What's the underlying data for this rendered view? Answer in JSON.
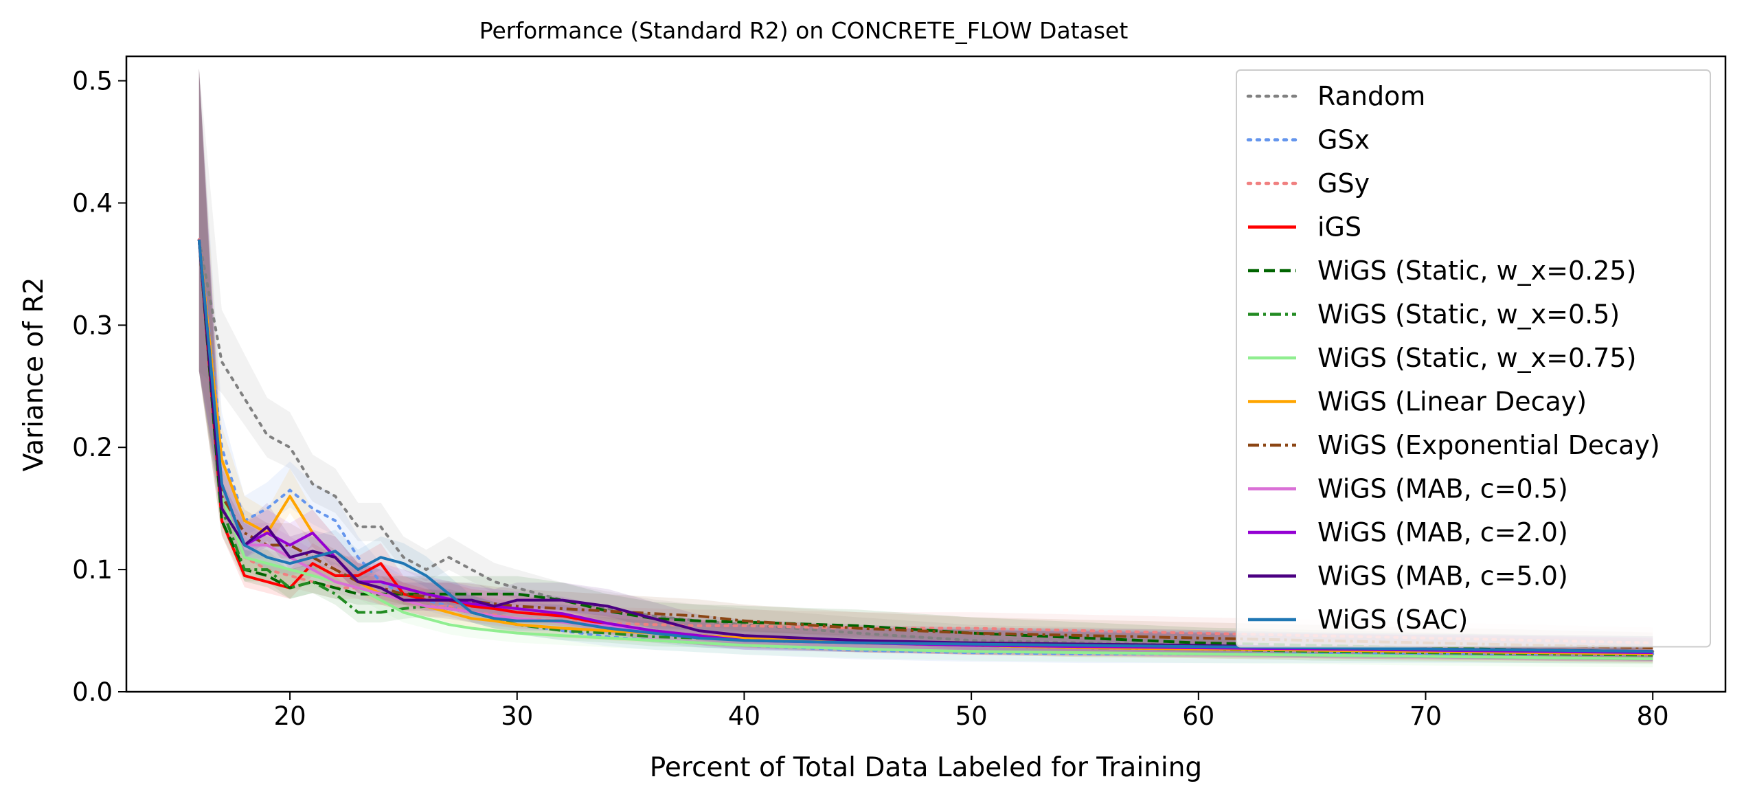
{
  "chart_data": {
    "type": "line",
    "title": "Performance (Standard R2) on CONCRETE_FLOW Dataset",
    "xlabel": "Percent of Total Data Labeled for Training",
    "ylabel": "Variance of R2",
    "xlim": [
      12.8,
      83.2
    ],
    "ylim": [
      0.0,
      0.52
    ],
    "xticks": [
      20,
      30,
      40,
      50,
      60,
      70,
      80
    ],
    "yticks": [
      0.0,
      0.1,
      0.2,
      0.3,
      0.4,
      0.5
    ],
    "xtick_labels": [
      "20",
      "30",
      "40",
      "50",
      "60",
      "70",
      "80"
    ],
    "ytick_labels": [
      "0.0",
      "0.1",
      "0.2",
      "0.3",
      "0.4",
      "0.5"
    ],
    "grid": false,
    "legend_position": "top-right",
    "x": [
      16,
      17,
      18,
      19,
      20,
      21,
      22,
      23,
      24,
      25,
      26,
      27,
      28,
      29,
      30,
      32,
      34,
      36,
      38,
      40,
      45,
      50,
      55,
      60,
      65,
      70,
      75,
      80
    ],
    "series": [
      {
        "name": "Random",
        "color": "#808080",
        "dash": "dotted",
        "values": [
          0.37,
          0.27,
          0.24,
          0.21,
          0.2,
          0.17,
          0.16,
          0.135,
          0.135,
          0.11,
          0.1,
          0.11,
          0.1,
          0.09,
          0.085,
          0.075,
          0.068,
          0.062,
          0.058,
          0.055,
          0.048,
          0.042,
          0.04,
          0.038,
          0.036,
          0.035,
          0.034,
          0.033
        ]
      },
      {
        "name": "GSx",
        "color": "#6495ED",
        "dash": "dotted",
        "values": [
          0.37,
          0.2,
          0.14,
          0.15,
          0.165,
          0.15,
          0.14,
          0.11,
          0.09,
          0.08,
          0.075,
          0.07,
          0.065,
          0.06,
          0.055,
          0.05,
          0.045,
          0.042,
          0.04,
          0.038,
          0.034,
          0.032,
          0.031,
          0.031,
          0.031,
          0.031,
          0.031,
          0.031
        ]
      },
      {
        "name": "GSy",
        "color": "#F08080",
        "dash": "dotted",
        "values": [
          0.37,
          0.16,
          0.11,
          0.1,
          0.095,
          0.09,
          0.085,
          0.085,
          0.08,
          0.075,
          0.07,
          0.07,
          0.065,
          0.063,
          0.06,
          0.058,
          0.056,
          0.055,
          0.054,
          0.054,
          0.052,
          0.052,
          0.05,
          0.048,
          0.046,
          0.044,
          0.042,
          0.04
        ]
      },
      {
        "name": "iGS",
        "color": "#FF0000",
        "dash": "solid",
        "values": [
          0.37,
          0.14,
          0.095,
          0.09,
          0.085,
          0.105,
          0.095,
          0.095,
          0.105,
          0.08,
          0.075,
          0.075,
          0.07,
          0.068,
          0.065,
          0.062,
          0.055,
          0.05,
          0.046,
          0.044,
          0.04,
          0.038,
          0.037,
          0.036,
          0.035,
          0.034,
          0.033,
          0.032
        ]
      },
      {
        "name": "WiGS (Static, w_x=0.25)",
        "color": "#006400",
        "dash": "dashed",
        "values": [
          0.37,
          0.14,
          0.1,
          0.095,
          0.085,
          0.09,
          0.085,
          0.08,
          0.08,
          0.08,
          0.08,
          0.08,
          0.08,
          0.08,
          0.08,
          0.075,
          0.066,
          0.06,
          0.058,
          0.057,
          0.054,
          0.048,
          0.044,
          0.04,
          0.038,
          0.036,
          0.034,
          0.033
        ]
      },
      {
        "name": "WiGS (Static, w_x=0.5)",
        "color": "#228B22",
        "dash": "dashdot",
        "values": [
          0.37,
          0.15,
          0.1,
          0.1,
          0.085,
          0.09,
          0.08,
          0.065,
          0.065,
          0.068,
          0.07,
          0.068,
          0.065,
          0.06,
          0.055,
          0.05,
          0.048,
          0.045,
          0.044,
          0.043,
          0.04,
          0.038,
          0.036,
          0.035,
          0.033,
          0.032,
          0.031,
          0.03
        ]
      },
      {
        "name": "WiGS (Static, w_x=0.75)",
        "color": "#90EE90",
        "dash": "solid",
        "values": [
          0.37,
          0.16,
          0.11,
          0.105,
          0.1,
          0.095,
          0.09,
          0.085,
          0.075,
          0.065,
          0.06,
          0.055,
          0.052,
          0.05,
          0.048,
          0.046,
          0.044,
          0.042,
          0.04,
          0.038,
          0.035,
          0.033,
          0.032,
          0.031,
          0.03,
          0.029,
          0.028,
          0.027
        ]
      },
      {
        "name": "WiGS (Linear Decay)",
        "color": "#FFA500",
        "dash": "solid",
        "values": [
          0.37,
          0.19,
          0.14,
          0.13,
          0.16,
          0.13,
          0.11,
          0.09,
          0.08,
          0.075,
          0.07,
          0.065,
          0.06,
          0.058,
          0.055,
          0.052,
          0.05,
          0.048,
          0.046,
          0.044,
          0.04,
          0.038,
          0.036,
          0.035,
          0.034,
          0.033,
          0.032,
          0.031
        ]
      },
      {
        "name": "WiGS (Exponential Decay)",
        "color": "#8B4513",
        "dash": "dashdot",
        "values": [
          0.37,
          0.16,
          0.13,
          0.12,
          0.12,
          0.11,
          0.1,
          0.09,
          0.085,
          0.08,
          0.078,
          0.076,
          0.074,
          0.072,
          0.07,
          0.068,
          0.066,
          0.064,
          0.062,
          0.058,
          0.052,
          0.048,
          0.046,
          0.044,
          0.042,
          0.04,
          0.038,
          0.036
        ]
      },
      {
        "name": "WiGS (MAB, c=0.5)",
        "color": "#DA70D6",
        "dash": "solid",
        "values": [
          0.37,
          0.17,
          0.12,
          0.12,
          0.11,
          0.1,
          0.09,
          0.085,
          0.08,
          0.075,
          0.07,
          0.068,
          0.065,
          0.062,
          0.06,
          0.057,
          0.054,
          0.05,
          0.046,
          0.042,
          0.04,
          0.038,
          0.037,
          0.036,
          0.035,
          0.034,
          0.033,
          0.032
        ]
      },
      {
        "name": "WiGS (MAB, c=2.0)",
        "color": "#9400D3",
        "dash": "solid",
        "values": [
          0.37,
          0.17,
          0.12,
          0.13,
          0.12,
          0.13,
          0.11,
          0.09,
          0.09,
          0.085,
          0.08,
          0.076,
          0.072,
          0.07,
          0.068,
          0.064,
          0.056,
          0.05,
          0.046,
          0.042,
          0.04,
          0.038,
          0.037,
          0.036,
          0.035,
          0.034,
          0.033,
          0.032
        ]
      },
      {
        "name": "WiGS (MAB, c=5.0)",
        "color": "#4B0082",
        "dash": "solid",
        "values": [
          0.37,
          0.15,
          0.12,
          0.135,
          0.11,
          0.115,
          0.11,
          0.09,
          0.085,
          0.075,
          0.075,
          0.075,
          0.075,
          0.07,
          0.075,
          0.075,
          0.07,
          0.06,
          0.05,
          0.046,
          0.042,
          0.04,
          0.039,
          0.038,
          0.036,
          0.035,
          0.034,
          0.033
        ]
      },
      {
        "name": "WiGS (SAC)",
        "color": "#1F77B4",
        "dash": "solid",
        "values": [
          0.37,
          0.17,
          0.12,
          0.11,
          0.105,
          0.11,
          0.115,
          0.1,
          0.11,
          0.105,
          0.095,
          0.08,
          0.065,
          0.06,
          0.058,
          0.058,
          0.052,
          0.048,
          0.044,
          0.042,
          0.04,
          0.039,
          0.038,
          0.037,
          0.036,
          0.035,
          0.034,
          0.033
        ]
      }
    ]
  }
}
